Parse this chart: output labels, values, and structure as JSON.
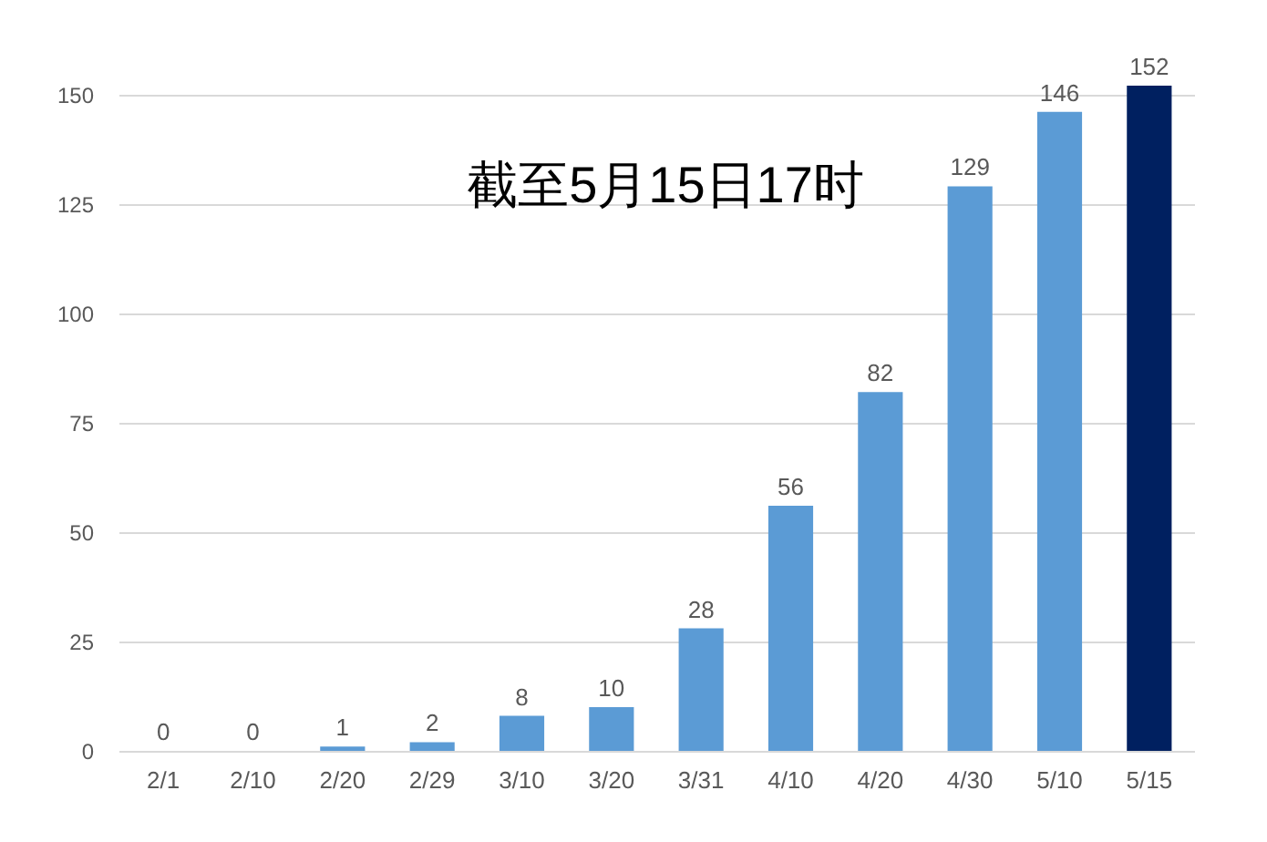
{
  "chart_data": {
    "type": "bar",
    "categories": [
      "2/1",
      "2/10",
      "2/20",
      "2/29",
      "3/10",
      "3/20",
      "3/31",
      "4/10",
      "4/20",
      "4/30",
      "5/10",
      "5/15"
    ],
    "values": [
      0,
      0,
      1,
      2,
      8,
      10,
      28,
      56,
      82,
      129,
      146,
      152
    ],
    "colors": [
      "#5b9bd5",
      "#5b9bd5",
      "#5b9bd5",
      "#5b9bd5",
      "#5b9bd5",
      "#5b9bd5",
      "#5b9bd5",
      "#5b9bd5",
      "#5b9bd5",
      "#5b9bd5",
      "#5b9bd5",
      "#002060"
    ],
    "ylim": [
      0,
      152
    ],
    "yticks": [
      0,
      25,
      50,
      75,
      100,
      125,
      150
    ],
    "grid": "y",
    "data_labels": true,
    "annotations": [
      "截至5月15日17时"
    ]
  }
}
